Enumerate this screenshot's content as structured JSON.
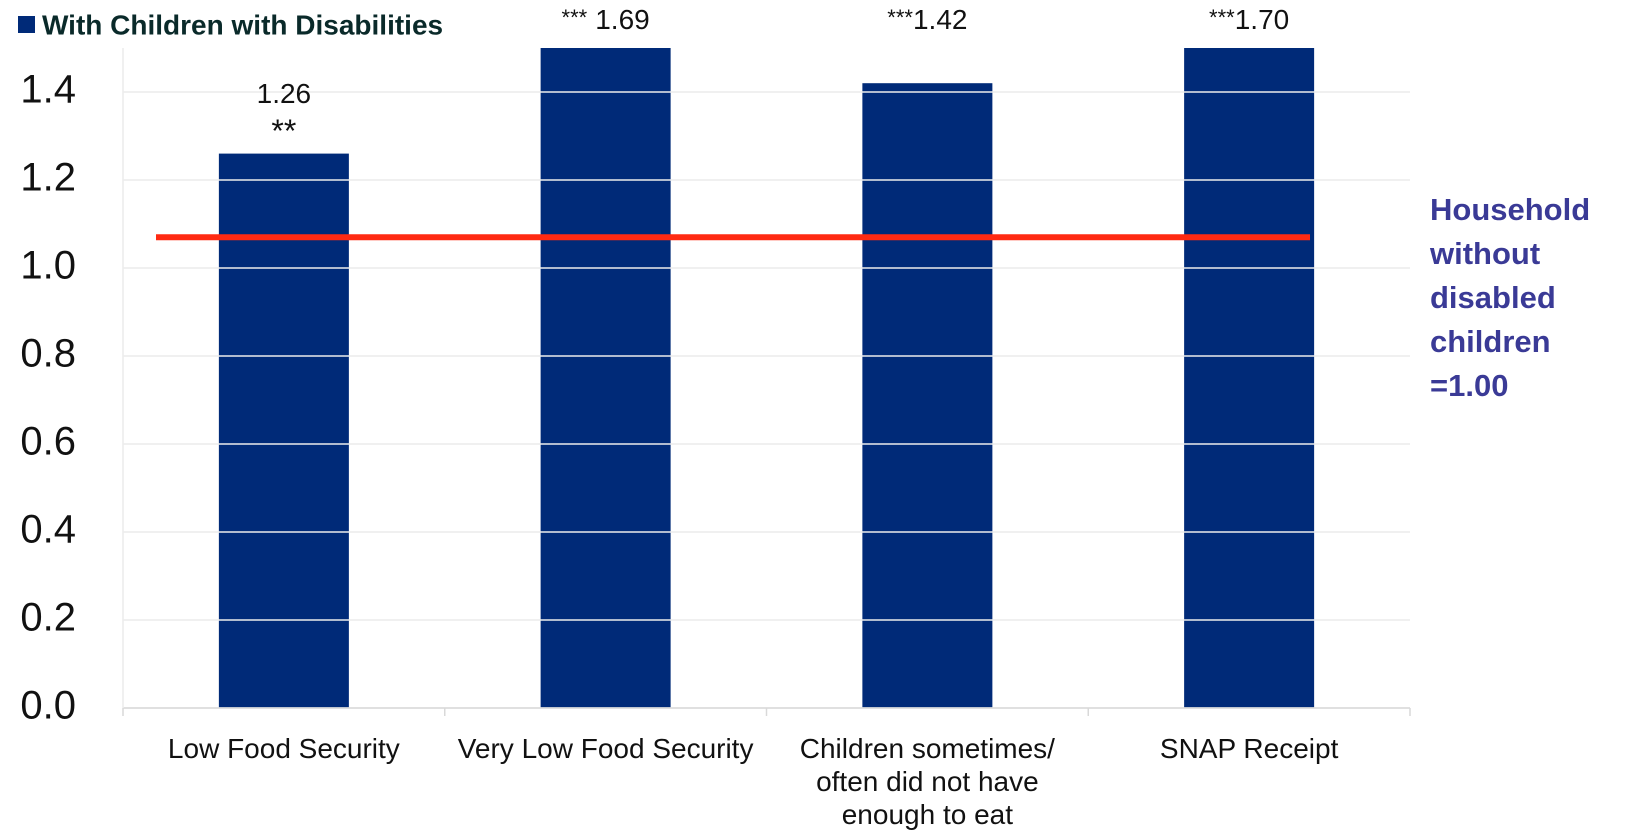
{
  "chart_data": {
    "type": "bar",
    "legend_label": "With Children with Disabilities",
    "categories": [
      "Low Food Security",
      "Very Low Food Security",
      "Children sometimes/ often did not have enough to eat",
      "SNAP Receipt"
    ],
    "values": [
      1.26,
      1.69,
      1.42,
      1.7
    ],
    "value_labels": [
      "1.26",
      "1.69",
      "1.42",
      "1.70"
    ],
    "significance": [
      "**",
      "***",
      "***",
      "***"
    ],
    "color": "#002a78",
    "ylim": [
      0,
      1.5
    ],
    "yticks": [
      {
        "value": 0,
        "label": "0.0"
      },
      0.2,
      0.4,
      0.6,
      0.8,
      {
        "value": 1,
        "label": "1.0"
      },
      1.2,
      1.4
    ],
    "grid": true,
    "reference_line": {
      "value": 1.07,
      "color": "#ff2a12"
    },
    "annotation": {
      "lines": [
        "Household",
        "without",
        "disabled",
        "children",
        "=1.00"
      ],
      "color": "#3a3a96"
    }
  }
}
